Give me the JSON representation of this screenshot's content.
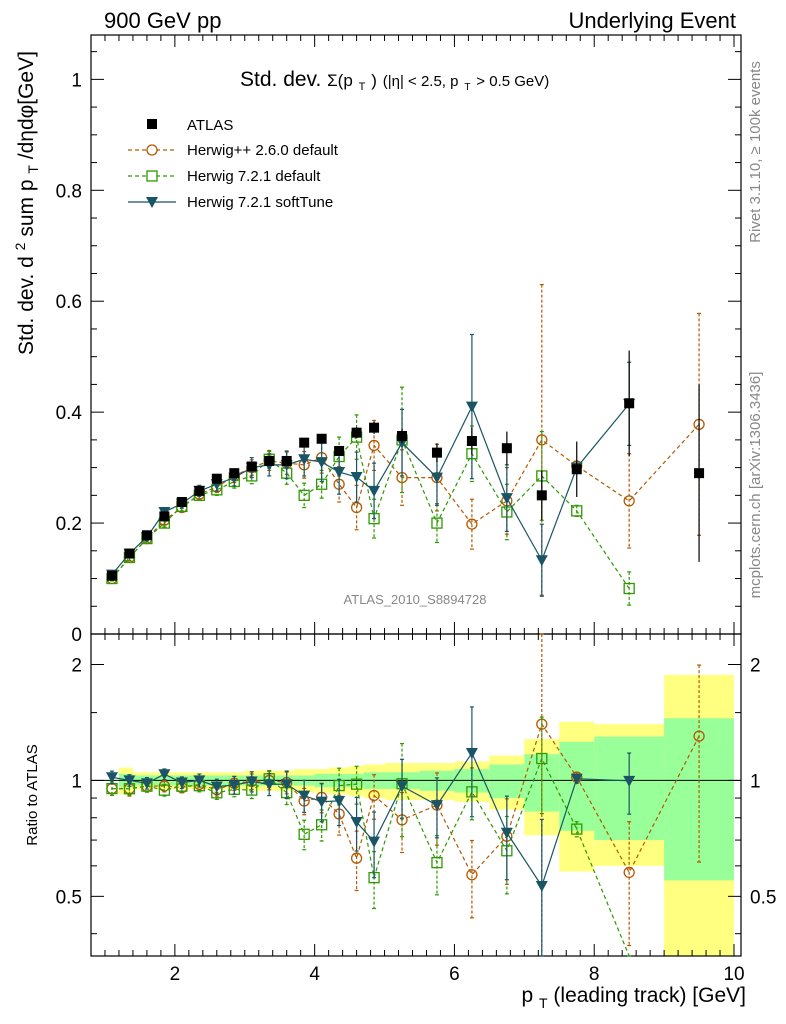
{
  "header": {
    "left": "900 GeV pp",
    "right": "Underlying Event"
  },
  "side_labels": {
    "rivet": "Rivet 3.1.10, ≥ 100k events",
    "mcplots": "mcplots.cern.ch [arXiv:1306.3436]"
  },
  "colors": {
    "atlas": "#000000",
    "herwigpp": "#b35900",
    "herwig721": "#2e9900",
    "softtune": "#1a5566",
    "band_yellow": "#ffff80",
    "band_green": "#99ff99"
  },
  "chart_data": {
    "type": "scatter",
    "title_main": "Std. dev.",
    "title_sigma": "Σ(p",
    "title_sigma_sub": "T",
    "title_close": ")",
    "title_cond_a": "(|η| < 2.5, p",
    "title_cond_sub": "T",
    "title_cond_b": " > 0.5 GeV)",
    "watermark": "ATLAS_2010_S8894728",
    "ylabel_a": "Std. dev. d",
    "ylabel_sup": "2",
    "ylabel_b": " sum p",
    "ylabel_sub": "T",
    "ylabel_c": "/dηdφ[GeV]",
    "ratio_ylabel": "Ratio to ATLAS",
    "xlabel_a": "p",
    "xlabel_sub": "T",
    "xlabel_b": " (leading track) [GeV]",
    "xlim": [
      0.8,
      10.1
    ],
    "ylim": [
      0,
      1.08
    ],
    "ratio_ylim": [
      0.35,
      2.4
    ],
    "main_yticks": [
      0,
      0.2,
      0.4,
      0.6,
      0.8,
      1
    ],
    "main_ytick_labels": [
      "0",
      "0.2",
      "0.4",
      "0.6",
      "0.8",
      "1"
    ],
    "ratio_yticks": [
      0.5,
      1,
      2
    ],
    "ratio_ytick_labels": [
      "0.5",
      "1",
      "2"
    ],
    "xticks": [
      2,
      4,
      6,
      8,
      10
    ],
    "xtick_labels": [
      "2",
      "4",
      "6",
      "8",
      "10"
    ],
    "legend": {
      "position": "top-left",
      "entries": [
        "ATLAS",
        "Herwig++ 2.6.0 default",
        "Herwig 7.2.1 default",
        "Herwig 7.2.1 softTune"
      ]
    },
    "x": [
      1.1,
      1.35,
      1.6,
      1.85,
      2.1,
      2.35,
      2.6,
      2.85,
      3.1,
      3.35,
      3.6,
      3.85,
      4.1,
      4.35,
      4.6,
      4.85,
      5.25,
      5.75,
      6.25,
      6.75,
      7.25,
      7.75,
      8.5,
      9.5
    ],
    "series": [
      {
        "name": "ATLAS",
        "values": [
          0.105,
          0.145,
          0.178,
          0.212,
          0.238,
          0.258,
          0.28,
          0.29,
          0.302,
          0.312,
          0.312,
          0.345,
          0.352,
          0.33,
          0.363,
          0.372,
          0.357,
          0.327,
          0.348,
          0.335,
          0.25,
          0.297,
          0.416,
          0.29
        ],
        "errors": [
          0.003,
          0.003,
          0.003,
          0.003,
          0.003,
          0.003,
          0.003,
          0.004,
          0.004,
          0.004,
          0.005,
          0.006,
          0.007,
          0.008,
          0.01,
          0.011,
          0.013,
          0.017,
          0.024,
          0.03,
          0.045,
          0.05,
          0.095,
          0.16
        ]
      },
      {
        "name": "Herwig++ 2.6.0 default",
        "values": [
          0.1,
          0.138,
          0.172,
          0.205,
          0.228,
          0.252,
          0.265,
          0.285,
          0.3,
          0.312,
          0.308,
          0.305,
          0.318,
          0.27,
          0.228,
          0.34,
          0.282,
          0.282,
          0.198,
          0.24,
          0.35,
          0.303,
          0.24,
          0.378
        ],
        "errors": [
          0.004,
          0.006,
          0.006,
          0.007,
          0.007,
          0.008,
          0.01,
          0.012,
          0.014,
          0.017,
          0.02,
          0.024,
          0.028,
          0.032,
          0.04,
          0.045,
          0.05,
          0.06,
          0.045,
          0.06,
          0.28,
          0.008,
          0.085,
          0.2
        ]
      },
      {
        "name": "Herwig 7.2.1 default",
        "values": [
          0.1,
          0.138,
          0.172,
          0.2,
          0.23,
          0.25,
          0.26,
          0.275,
          0.285,
          0.315,
          0.29,
          0.25,
          0.27,
          0.32,
          0.355,
          0.208,
          0.35,
          0.2,
          0.325,
          0.22,
          0.285,
          0.222,
          0.082,
          null
        ],
        "errors": [
          0.004,
          0.005,
          0.006,
          0.007,
          0.008,
          0.009,
          0.01,
          0.012,
          0.014,
          0.016,
          0.02,
          0.022,
          0.025,
          0.035,
          0.04,
          0.035,
          0.095,
          0.035,
          0.05,
          0.05,
          0.08,
          0.01,
          0.03,
          null
        ]
      },
      {
        "name": "Herwig 7.2.1 softTune",
        "values": [
          0.107,
          0.145,
          0.175,
          0.22,
          0.235,
          0.258,
          0.27,
          0.282,
          0.3,
          0.305,
          0.305,
          0.315,
          0.31,
          0.292,
          0.283,
          0.258,
          0.345,
          0.282,
          0.41,
          0.245,
          0.133,
          0.3,
          0.415,
          null
        ],
        "errors": [
          0.004,
          0.005,
          0.006,
          0.007,
          0.008,
          0.01,
          0.012,
          0.015,
          0.018,
          0.02,
          0.025,
          0.03,
          0.035,
          0.04,
          0.045,
          0.05,
          0.06,
          0.05,
          0.13,
          0.06,
          0.065,
          0.008,
          0.075,
          null
        ]
      }
    ],
    "ratio_bands": {
      "edges": [
        1.2,
        1.4,
        1.7,
        2.0,
        2.3,
        2.7,
        3.0,
        3.3,
        3.7,
        4.0,
        4.2,
        4.5,
        4.7,
        5.0,
        5.5,
        6.0,
        6.5,
        7.0,
        7.5,
        8.0,
        9.0,
        10.0
      ],
      "yellow": [
        0.08,
        0.05,
        0.05,
        0.05,
        0.05,
        0.05,
        0.06,
        0.06,
        0.07,
        0.07,
        0.08,
        0.09,
        0.1,
        0.11,
        0.11,
        0.12,
        0.16,
        0.28,
        0.42,
        0.4,
        0.88
      ],
      "green": [
        0.04,
        0.03,
        0.03,
        0.03,
        0.03,
        0.03,
        0.03,
        0.03,
        0.03,
        0.04,
        0.04,
        0.04,
        0.05,
        0.05,
        0.06,
        0.07,
        0.1,
        0.17,
        0.26,
        0.3,
        0.45
      ]
    }
  }
}
